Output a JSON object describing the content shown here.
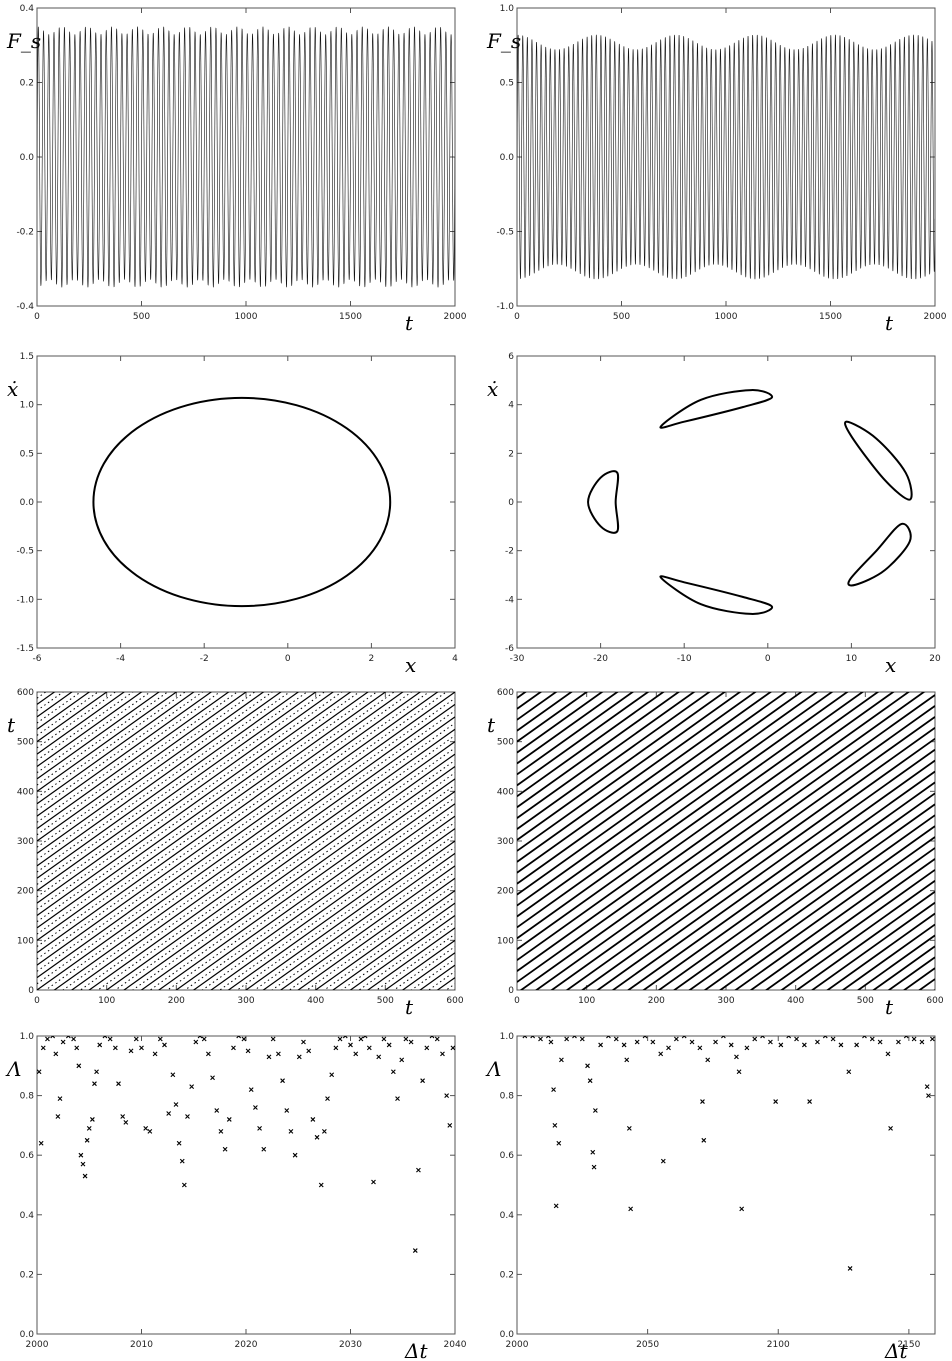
{
  "chart_data": [
    {
      "id": "a",
      "type": "line",
      "description_values": "oscillating time series, period ~25, amplitude ~0.35",
      "xlabel": "t",
      "ylabel": "F_s",
      "xlim": [
        0,
        2000
      ],
      "ylim": [
        -0.4,
        0.4
      ],
      "xticks": [
        0,
        500,
        1000,
        1500,
        2000
      ],
      "yticks": [
        -0.4,
        -0.2,
        0.0,
        0.2,
        0.4
      ],
      "xtick_labels": [
        "0",
        "500",
        "1000",
        "1500",
        "2000"
      ],
      "ytick_labels": [
        "-0.4",
        "-0.2",
        "0.0",
        "0.2",
        "0.4"
      ],
      "signal": {
        "amplitude": 0.35,
        "period": 25,
        "modulation_depth": 0.03,
        "modulation_period": 120
      }
    },
    {
      "id": "b",
      "type": "line",
      "xlabel": "t",
      "ylabel": "F_s",
      "xlim": [
        0,
        2000
      ],
      "ylim": [
        -1.0,
        1.0
      ],
      "xticks": [
        0,
        500,
        1000,
        1500,
        2000
      ],
      "yticks": [
        -1.0,
        -0.5,
        0.0,
        0.5,
        1.0
      ],
      "xtick_labels": [
        "0",
        "500",
        "1000",
        "1500",
        "2000"
      ],
      "ytick_labels": [
        "-1.0",
        "-0.5",
        "0.0",
        "0.5",
        "1.0"
      ],
      "signal": {
        "amplitude": 0.82,
        "period": 22,
        "modulation_depth": 0.06,
        "modulation_period": 380
      }
    },
    {
      "id": "c",
      "type": "line",
      "xlabel": "x",
      "ylabel": "ẋ",
      "xlim": [
        -6,
        4
      ],
      "ylim": [
        -1.5,
        1.5
      ],
      "xticks": [
        -6,
        -4,
        -2,
        0,
        2,
        4
      ],
      "yticks": [
        -1.5,
        -1.0,
        -0.5,
        0.0,
        0.5,
        1.0,
        1.5
      ],
      "xtick_labels": [
        "-6",
        "-4",
        "-2",
        "0",
        "2",
        "4"
      ],
      "ytick_labels": [
        "-1.5",
        "-1.0",
        "-0.5",
        "0.0",
        "0.5",
        "1.0",
        "1.5"
      ],
      "orbit": {
        "center_x": -1.1,
        "center_y": 0.0,
        "radius_x": 3.55,
        "radius_y": 1.07
      }
    },
    {
      "id": "d",
      "type": "line",
      "xlabel": "x",
      "ylabel": "ẋ",
      "xlim": [
        -30,
        20
      ],
      "ylim": [
        -6,
        6
      ],
      "xticks": [
        -30,
        -20,
        -10,
        0,
        10,
        20
      ],
      "yticks": [
        -6,
        -4,
        -2,
        0,
        2,
        4,
        6
      ],
      "xtick_labels": [
        "-30",
        "-20",
        "-10",
        "0",
        "10",
        "20"
      ],
      "ytick_labels": [
        "-6",
        "-4",
        "-2",
        "0",
        "2",
        "4",
        "6"
      ],
      "islands": [
        {
          "points": [
            [
              -18.2,
              0.0
            ],
            [
              -18.0,
              1.2
            ],
            [
              -20.0,
              1.0
            ],
            [
              -21.5,
              0.0
            ],
            [
              -20.0,
              -1.0
            ],
            [
              -18.0,
              -1.2
            ]
          ]
        },
        {
          "points": [
            [
              -12.8,
              3.1
            ],
            [
              -8.0,
              4.2
            ],
            [
              -2.0,
              4.6
            ],
            [
              0.5,
              4.3
            ],
            [
              -3.0,
              3.9
            ],
            [
              -10.0,
              3.3
            ]
          ]
        },
        {
          "points": [
            [
              -12.8,
              -3.1
            ],
            [
              -8.0,
              -4.2
            ],
            [
              -2.0,
              -4.6
            ],
            [
              0.5,
              -4.3
            ],
            [
              -3.0,
              -3.9
            ],
            [
              -10.0,
              -3.3
            ]
          ]
        },
        {
          "points": [
            [
              9.5,
              3.3
            ],
            [
              13.0,
              2.6
            ],
            [
              16.5,
              1.2
            ],
            [
              17.0,
              0.1
            ],
            [
              14.0,
              0.9
            ],
            [
              10.0,
              2.7
            ]
          ]
        },
        {
          "points": [
            [
              9.8,
              -3.2
            ],
            [
              13.0,
              -2.0
            ],
            [
              16.0,
              -0.9
            ],
            [
              17.0,
              -1.6
            ],
            [
              14.0,
              -2.8
            ],
            [
              10.5,
              -3.4
            ]
          ]
        }
      ]
    },
    {
      "id": "e",
      "type": "scatter",
      "xlabel": "t",
      "ylabel": "t",
      "xlim": [
        0,
        600
      ],
      "ylim": [
        0,
        600
      ],
      "xticks": [
        0,
        100,
        200,
        300,
        400,
        500,
        600
      ],
      "yticks": [
        0,
        100,
        200,
        300,
        400,
        500,
        600
      ],
      "xtick_labels": [
        "0",
        "100",
        "200",
        "300",
        "400",
        "500",
        "600"
      ],
      "ytick_labels": [
        "0",
        "100",
        "200",
        "300",
        "400",
        "500",
        "600"
      ],
      "diagonals": {
        "spacing": 25,
        "dense_dots": true
      }
    },
    {
      "id": "f",
      "type": "scatter",
      "xlabel": "t",
      "ylabel": "t",
      "xlim": [
        0,
        600
      ],
      "ylim": [
        0,
        600
      ],
      "xticks": [
        0,
        100,
        200,
        300,
        400,
        500,
        600
      ],
      "yticks": [
        0,
        100,
        200,
        300,
        400,
        500,
        600
      ],
      "xtick_labels": [
        "0",
        "100",
        "200",
        "300",
        "400",
        "500",
        "600"
      ],
      "ytick_labels": [
        "0",
        "100",
        "200",
        "300",
        "400",
        "500",
        "600"
      ],
      "diagonals": {
        "spacing": 22,
        "dense_dots": false
      }
    },
    {
      "id": "g",
      "type": "scatter",
      "xlabel": "Δt",
      "ylabel": "Λ",
      "xlim": [
        2000,
        2040
      ],
      "ylim": [
        0.0,
        1.0
      ],
      "xticks": [
        2000,
        2010,
        2020,
        2030,
        2040
      ],
      "yticks": [
        0.0,
        0.2,
        0.4,
        0.6,
        0.8,
        1.0
      ],
      "xtick_labels": [
        "2000",
        "2010",
        "2020",
        "2030",
        "2040"
      ],
      "ytick_labels": [
        "0.0",
        "0.2",
        "0.4",
        "0.6",
        "0.8",
        "1.0"
      ],
      "points": [
        [
          2000.2,
          0.88
        ],
        [
          2000.4,
          0.64
        ],
        [
          2000.6,
          0.96
        ],
        [
          2001.0,
          0.99
        ],
        [
          2001.5,
          1.0
        ],
        [
          2001.8,
          0.94
        ],
        [
          2002.0,
          0.73
        ],
        [
          2002.2,
          0.79
        ],
        [
          2002.5,
          0.98
        ],
        [
          2003.0,
          1.0
        ],
        [
          2003.5,
          0.99
        ],
        [
          2003.8,
          0.96
        ],
        [
          2004.0,
          0.9
        ],
        [
          2004.2,
          0.6
        ],
        [
          2004.4,
          0.57
        ],
        [
          2004.6,
          0.53
        ],
        [
          2004.8,
          0.65
        ],
        [
          2005.0,
          0.69
        ],
        [
          2005.3,
          0.72
        ],
        [
          2005.5,
          0.84
        ],
        [
          2005.7,
          0.88
        ],
        [
          2006.0,
          0.97
        ],
        [
          2006.5,
          1.0
        ],
        [
          2007.0,
          0.99
        ],
        [
          2007.5,
          0.96
        ],
        [
          2007.8,
          0.84
        ],
        [
          2008.2,
          0.73
        ],
        [
          2008.5,
          0.71
        ],
        [
          2009.0,
          0.95
        ],
        [
          2009.5,
          0.99
        ],
        [
          2010.0,
          0.96
        ],
        [
          2010.4,
          0.69
        ],
        [
          2010.8,
          0.68
        ],
        [
          2011.3,
          0.94
        ],
        [
          2011.8,
          0.99
        ],
        [
          2012.2,
          0.97
        ],
        [
          2012.6,
          0.74
        ],
        [
          2013.0,
          0.87
        ],
        [
          2013.3,
          0.77
        ],
        [
          2013.6,
          0.64
        ],
        [
          2013.9,
          0.58
        ],
        [
          2014.1,
          0.5
        ],
        [
          2014.4,
          0.73
        ],
        [
          2014.8,
          0.83
        ],
        [
          2015.2,
          0.98
        ],
        [
          2015.6,
          1.0
        ],
        [
          2016.0,
          0.99
        ],
        [
          2016.4,
          0.94
        ],
        [
          2016.8,
          0.86
        ],
        [
          2017.2,
          0.75
        ],
        [
          2017.6,
          0.68
        ],
        [
          2018.0,
          0.62
        ],
        [
          2018.4,
          0.72
        ],
        [
          2018.8,
          0.96
        ],
        [
          2019.3,
          1.0
        ],
        [
          2019.8,
          0.99
        ],
        [
          2020.2,
          0.95
        ],
        [
          2020.5,
          0.82
        ],
        [
          2020.9,
          0.76
        ],
        [
          2021.3,
          0.69
        ],
        [
          2021.7,
          0.62
        ],
        [
          2022.2,
          0.93
        ],
        [
          2022.6,
          0.99
        ],
        [
          2023.1,
          0.94
        ],
        [
          2023.5,
          0.85
        ],
        [
          2023.9,
          0.75
        ],
        [
          2024.3,
          0.68
        ],
        [
          2024.7,
          0.6
        ],
        [
          2025.1,
          0.93
        ],
        [
          2025.5,
          0.98
        ],
        [
          2026.0,
          0.95
        ],
        [
          2026.4,
          0.72
        ],
        [
          2026.8,
          0.66
        ],
        [
          2027.2,
          0.5
        ],
        [
          2027.5,
          0.68
        ],
        [
          2027.8,
          0.79
        ],
        [
          2028.2,
          0.87
        ],
        [
          2028.6,
          0.96
        ],
        [
          2029.0,
          0.99
        ],
        [
          2029.5,
          1.0
        ],
        [
          2030.0,
          0.97
        ],
        [
          2030.5,
          0.94
        ],
        [
          2031.0,
          0.99
        ],
        [
          2031.4,
          1.0
        ],
        [
          2031.8,
          0.96
        ],
        [
          2032.2,
          0.51
        ],
        [
          2032.7,
          0.93
        ],
        [
          2033.2,
          0.99
        ],
        [
          2033.7,
          0.97
        ],
        [
          2034.1,
          0.88
        ],
        [
          2034.5,
          0.79
        ],
        [
          2034.9,
          0.92
        ],
        [
          2035.3,
          0.99
        ],
        [
          2035.8,
          0.98
        ],
        [
          2036.2,
          0.28
        ],
        [
          2036.5,
          0.55
        ],
        [
          2036.9,
          0.85
        ],
        [
          2037.3,
          0.96
        ],
        [
          2037.8,
          1.0
        ],
        [
          2038.3,
          0.99
        ],
        [
          2038.8,
          0.94
        ],
        [
          2039.2,
          0.8
        ],
        [
          2039.5,
          0.7
        ],
        [
          2039.8,
          0.96
        ]
      ]
    },
    {
      "id": "h",
      "type": "scatter",
      "xlabel": "Δt",
      "ylabel": "Λ",
      "xlim": [
        2000,
        2160
      ],
      "ylim": [
        0.0,
        1.0
      ],
      "xticks": [
        2000,
        2050,
        2100,
        2150
      ],
      "yticks": [
        0.0,
        0.2,
        0.4,
        0.6,
        0.8,
        1.0
      ],
      "xtick_labels": [
        "2000",
        "2050",
        "2100",
        "2150"
      ],
      "ytick_labels": [
        "0.0",
        "0.2",
        "0.4",
        "0.6",
        "0.8",
        "1.0"
      ],
      "points": [
        [
          2003,
          1.0
        ],
        [
          2006,
          1.0
        ],
        [
          2009,
          0.99
        ],
        [
          2012,
          1.0
        ],
        [
          2013,
          0.98
        ],
        [
          2014,
          0.82
        ],
        [
          2014.5,
          0.7
        ],
        [
          2015,
          0.43
        ],
        [
          2016,
          0.64
        ],
        [
          2017,
          0.92
        ],
        [
          2019,
          0.99
        ],
        [
          2022,
          1.0
        ],
        [
          2025,
          0.99
        ],
        [
          2027,
          0.9
        ],
        [
          2028,
          0.85
        ],
        [
          2029,
          0.61
        ],
        [
          2029.5,
          0.56
        ],
        [
          2030,
          0.75
        ],
        [
          2032,
          0.97
        ],
        [
          2035,
          1.0
        ],
        [
          2038,
          0.99
        ],
        [
          2041,
          0.97
        ],
        [
          2042,
          0.92
        ],
        [
          2043,
          0.69
        ],
        [
          2043.5,
          0.42
        ],
        [
          2046,
          0.98
        ],
        [
          2049,
          1.0
        ],
        [
          2052,
          0.98
        ],
        [
          2055,
          0.94
        ],
        [
          2056,
          0.58
        ],
        [
          2058,
          0.96
        ],
        [
          2061,
          0.99
        ],
        [
          2064,
          1.0
        ],
        [
          2067,
          0.98
        ],
        [
          2070,
          0.96
        ],
        [
          2071,
          0.78
        ],
        [
          2071.5,
          0.65
        ],
        [
          2073,
          0.92
        ],
        [
          2076,
          0.98
        ],
        [
          2079,
          1.0
        ],
        [
          2082,
          0.97
        ],
        [
          2084,
          0.93
        ],
        [
          2085,
          0.88
        ],
        [
          2086,
          0.42
        ],
        [
          2088,
          0.96
        ],
        [
          2091,
          0.99
        ],
        [
          2094,
          1.0
        ],
        [
          2097,
          0.98
        ],
        [
          2099,
          0.78
        ],
        [
          2101,
          0.97
        ],
        [
          2104,
          1.0
        ],
        [
          2107,
          0.99
        ],
        [
          2110,
          0.97
        ],
        [
          2112,
          0.78
        ],
        [
          2115,
          0.98
        ],
        [
          2118,
          1.0
        ],
        [
          2121,
          0.99
        ],
        [
          2124,
          0.97
        ],
        [
          2127,
          0.88
        ],
        [
          2127.5,
          0.22
        ],
        [
          2130,
          0.97
        ],
        [
          2133,
          1.0
        ],
        [
          2136,
          0.99
        ],
        [
          2139,
          0.98
        ],
        [
          2142,
          0.94
        ],
        [
          2143,
          0.69
        ],
        [
          2146,
          0.98
        ],
        [
          2149,
          1.0
        ],
        [
          2152,
          0.99
        ],
        [
          2155,
          0.98
        ],
        [
          2157,
          0.83
        ],
        [
          2157.5,
          0.8
        ],
        [
          2159,
          0.99
        ]
      ]
    }
  ]
}
